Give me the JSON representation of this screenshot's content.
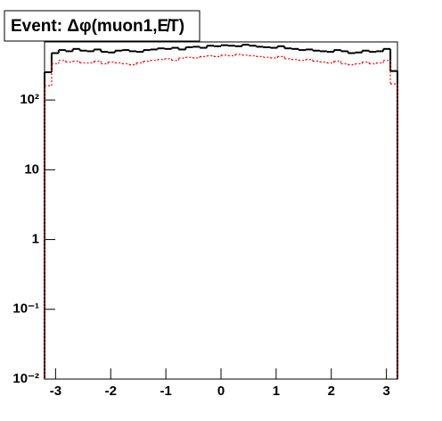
{
  "chart_data": {
    "type": "histogram",
    "title": "Event: Δφ(muon1,E̸T)",
    "bins": [
      -3.2,
      -3.072,
      -2.944,
      -2.816,
      -2.688,
      -2.56,
      -2.432,
      -2.304,
      -2.176,
      -2.048,
      -1.92,
      -1.792,
      -1.664,
      -1.536,
      -1.408,
      -1.28,
      -1.152,
      -1.024,
      -0.896,
      -0.768,
      -0.64,
      -0.512,
      -0.384,
      -0.256,
      -0.128,
      0,
      0.128,
      0.256,
      0.384,
      0.512,
      0.64,
      0.768,
      0.896,
      1.024,
      1.152,
      1.28,
      1.408,
      1.536,
      1.664,
      1.792,
      1.92,
      2.048,
      2.176,
      2.304,
      2.432,
      2.56,
      2.688,
      2.816,
      2.944,
      3.072,
      3.2
    ],
    "series": [
      {
        "color": "#000000",
        "values": [
          250,
          470,
          520,
          500,
          540,
          510,
          500,
          530,
          490,
          480,
          510,
          520,
          500,
          490,
          520,
          530,
          550,
          540,
          560,
          530,
          570,
          580,
          560,
          600,
          590,
          610,
          600,
          590,
          620,
          600,
          580,
          570,
          560,
          590,
          550,
          540,
          520,
          530,
          510,
          500,
          490,
          520,
          500,
          470,
          480,
          510,
          490,
          500,
          540,
          260
        ]
      },
      {
        "color": "#ff0000",
        "dashed": true,
        "values": [
          160,
          330,
          370,
          350,
          360,
          340,
          340,
          360,
          330,
          350,
          340,
          330,
          320,
          340,
          360,
          370,
          380,
          390,
          370,
          400,
          410,
          400,
          420,
          430,
          420,
          440,
          430,
          450,
          440,
          430,
          420,
          410,
          400,
          420,
          390,
          380,
          370,
          380,
          360,
          350,
          340,
          360,
          330,
          320,
          330,
          350,
          330,
          340,
          370,
          170
        ]
      }
    ],
    "xlim": [
      -3.2,
      3.2
    ],
    "xticks": [
      -3,
      -2,
      -1,
      0,
      1,
      2,
      3
    ],
    "ylim": [
      0.01,
      680
    ],
    "log_y": true,
    "yticks": [
      {
        "value": 0.01,
        "label": "10⁻²"
      },
      {
        "value": 0.1,
        "label": "10⁻¹"
      },
      1,
      10,
      {
        "value": 100,
        "label": "10²"
      }
    ]
  }
}
